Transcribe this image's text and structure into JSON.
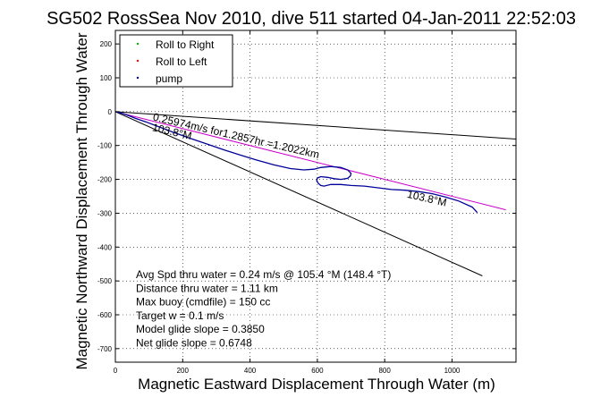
{
  "chart_data": {
    "type": "line",
    "title": "SG502 RossSea Nov 2010, dive 511 started 04-Jan-2011 22:52:03",
    "xlabel": "Magnetic Eastward Displacement Through Water (m)",
    "ylabel": "Magnetic Northward Displacement Through Water",
    "xlim": [
      0,
      1190
    ],
    "ylim": [
      -740,
      240
    ],
    "xticks": [
      0,
      200,
      400,
      600,
      800,
      1000
    ],
    "yticks": [
      -700,
      -600,
      -500,
      -400,
      -300,
      -200,
      -100,
      0,
      100,
      200
    ],
    "grid": true,
    "legend_position": "top-left",
    "legend": [
      {
        "label": "Roll to Right",
        "color": "#00bb00",
        "marker": "dot"
      },
      {
        "label": "Roll to Left",
        "color": "#ff0000",
        "marker": "dot"
      },
      {
        "label": "pump",
        "color": "#000099",
        "marker": "dot"
      }
    ],
    "series": [
      {
        "color": "#000000",
        "style": "line",
        "x": [
          0,
          1190
        ],
        "y": [
          0,
          -81
        ]
      },
      {
        "color": "#000000",
        "style": "line",
        "x": [
          0,
          1090
        ],
        "y": [
          0,
          -485
        ]
      },
      {
        "color": "#cc00cc",
        "style": "line",
        "x": [
          0,
          1160
        ],
        "y": [
          0,
          -290
        ]
      },
      {
        "color": "#000099",
        "style": "line",
        "x": [
          0,
          20,
          40,
          60,
          90,
          130,
          170,
          220,
          270,
          320,
          370,
          420,
          470,
          520,
          560,
          590,
          610,
          640,
          670,
          690,
          700,
          698,
          690,
          670,
          650,
          630,
          610,
          600,
          598,
          603,
          610,
          620,
          640,
          670,
          700,
          740,
          780,
          820,
          860,
          900,
          940,
          980,
          1020,
          1060,
          1075
        ],
        "y": [
          0,
          -5,
          -12,
          -20,
          -30,
          -45,
          -60,
          -78,
          -95,
          -112,
          -128,
          -143,
          -157,
          -168,
          -172,
          -170,
          -165,
          -162,
          -165,
          -172,
          -182,
          -190,
          -197,
          -200,
          -198,
          -194,
          -192,
          -196,
          -204,
          -212,
          -218,
          -220,
          -215,
          -215,
          -218,
          -220,
          -225,
          -230,
          -232,
          -236,
          -242,
          -252,
          -264,
          -282,
          -298
        ]
      }
    ],
    "annotations": [
      {
        "text": "0.25974m/s for1.2857hr =1.2022km",
        "x": 110,
        "y": -25,
        "rotation": 13
      },
      {
        "text": "103.8°M",
        "x": 108,
        "y": -56,
        "rotation": 13
      },
      {
        "text": "103.8°M",
        "x": 865,
        "y": -253,
        "rotation": 13
      }
    ],
    "stats_text": [
      "Avg Spd thru water =  0.24 m/s @ 105.4   °M (148.4 °T)",
      "Distance thru water =  1.11 km",
      "Max buoy (cmdfile) = 150 cc",
      "Target w = 0.1 m/s",
      "Model glide slope = 0.3850",
      "Net glide slope = 0.6748"
    ]
  }
}
